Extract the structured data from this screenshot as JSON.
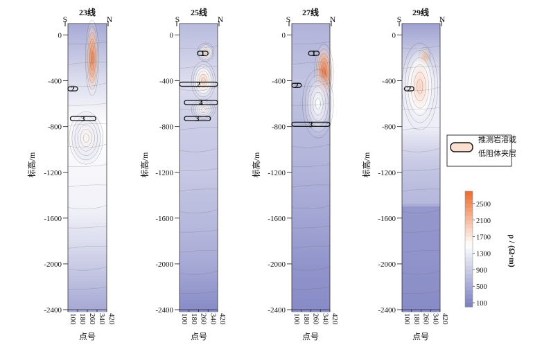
{
  "chart_data": [
    {
      "type": "heatmap",
      "title": "23线",
      "dir_left": "S",
      "dir_right": "N",
      "ylabel": "标高/m",
      "xlabel": "点号",
      "y_ticks": [
        0,
        -400,
        -800,
        -1200,
        -1600,
        -2000,
        -2400
      ],
      "x_ticks": [
        100,
        180,
        260,
        340,
        420
      ],
      "ylim": [
        -2400,
        100
      ],
      "xlim": [
        100,
        420
      ],
      "anomalies": [
        {
          "x": 300,
          "y": -200,
          "rx": 55,
          "ry": 330,
          "value": 2600
        },
        {
          "x": 250,
          "y": -900,
          "rx": 140,
          "ry": 230,
          "value": 1600
        }
      ],
      "base_profile": [
        [
          100,
          500
        ],
        [
          -400,
          1100
        ],
        [
          -800,
          1500
        ],
        [
          -1200,
          1400
        ],
        [
          -1500,
          1350
        ],
        [
          -1800,
          1100
        ],
        [
          -2000,
          900
        ],
        [
          -2400,
          500
        ]
      ],
      "layers": [
        {
          "label": "2",
          "x1": 100,
          "x2": 180,
          "y": -470
        },
        {
          "label": "3",
          "x1": 120,
          "x2": 330,
          "y": -730
        }
      ]
    },
    {
      "type": "heatmap",
      "title": "25线",
      "dir_left": "S",
      "dir_right": "N",
      "ylabel": "标高/m",
      "xlabel": "点号",
      "y_ticks": [
        0,
        -400,
        -800,
        -1200,
        -1600,
        -2000,
        -2400
      ],
      "x_ticks": [
        100,
        180,
        260,
        340,
        420
      ],
      "ylim": [
        -2400,
        100
      ],
      "xlim": [
        100,
        420
      ],
      "anomalies": [
        {
          "x": 300,
          "y": -400,
          "rx": 100,
          "ry": 170,
          "value": 1900
        },
        {
          "x": 320,
          "y": -150,
          "rx": 70,
          "ry": 80,
          "value": 1800
        },
        {
          "x": 300,
          "y": -650,
          "rx": 100,
          "ry": 90,
          "value": 1600
        }
      ],
      "base_profile": [
        [
          100,
          700
        ],
        [
          -400,
          1100
        ],
        [
          -800,
          900
        ],
        [
          -1200,
          850
        ],
        [
          -1600,
          700
        ],
        [
          -2000,
          500
        ],
        [
          -2400,
          150
        ]
      ],
      "layers": [
        {
          "label": "1",
          "x1": 250,
          "x2": 340,
          "y": -160
        },
        {
          "label": "2",
          "x1": 100,
          "x2": 420,
          "y": -430
        },
        {
          "label": "4",
          "x1": 140,
          "x2": 420,
          "y": -590
        },
        {
          "label": "3",
          "x1": 140,
          "x2": 360,
          "y": -730
        }
      ]
    },
    {
      "type": "heatmap",
      "title": "27线",
      "dir_left": "S",
      "dir_right": "N",
      "ylabel": "标高/m",
      "xlabel": "点号",
      "y_ticks": [
        0,
        -400,
        -800,
        -1200,
        -1600,
        -2000,
        -2400
      ],
      "x_ticks": [
        100,
        180,
        260,
        340,
        420
      ],
      "ylim": [
        -2400,
        100
      ],
      "xlim": [
        100,
        420
      ],
      "anomalies": [
        {
          "x": 370,
          "y": -330,
          "rx": 80,
          "ry": 250,
          "value": 2700
        },
        {
          "x": 320,
          "y": -600,
          "rx": 130,
          "ry": 300,
          "value": 1500
        }
      ],
      "base_profile": [
        [
          100,
          600
        ],
        [
          -400,
          800
        ],
        [
          -800,
          700
        ],
        [
          -1200,
          600
        ],
        [
          -1600,
          450
        ],
        [
          -2000,
          250
        ],
        [
          -2400,
          150
        ]
      ],
      "layers": [
        {
          "label": "1",
          "x1": 240,
          "x2": 330,
          "y": -160
        },
        {
          "label": "2",
          "x1": 100,
          "x2": 180,
          "y": -440
        },
        {
          "label": "3",
          "x1": 100,
          "x2": 420,
          "y": -780
        }
      ]
    },
    {
      "type": "heatmap",
      "title": "29线",
      "dir_left": "S",
      "dir_right": "N",
      "ylabel": "标高/m",
      "xlabel": "点号",
      "y_ticks": [
        0,
        -400,
        -800,
        -1200,
        -1600,
        -2000,
        -2400
      ],
      "x_ticks": [
        100,
        180,
        260,
        340,
        420
      ],
      "ylim": [
        -2400,
        100
      ],
      "xlim": [
        100,
        420
      ],
      "anomalies": [
        {
          "x": 290,
          "y": -200,
          "rx": 50,
          "ry": 90,
          "value": 2500
        },
        {
          "x": 250,
          "y": -450,
          "rx": 150,
          "ry": 380,
          "value": 1900
        }
      ],
      "base_profile": [
        [
          100,
          400
        ],
        [
          -400,
          1300
        ],
        [
          -800,
          1300
        ],
        [
          -1000,
          1000
        ],
        [
          -1200,
          800
        ],
        [
          -1480,
          650
        ],
        [
          -1500,
          280
        ],
        [
          -1900,
          250
        ],
        [
          -2400,
          150
        ]
      ],
      "layers": [
        {
          "label": "2",
          "x1": 120,
          "x2": 200,
          "y": -470
        }
      ]
    }
  ],
  "legend": {
    "text_line1": "推测岩溶或",
    "text_line2": "低阻体夹层"
  },
  "colorbar": {
    "ticks": [
      100,
      500,
      900,
      1300,
      1700,
      2100,
      2500
    ],
    "title": "ρ / (Ω·m)",
    "min": 0,
    "max": 2800,
    "colors": {
      "low": "#7b7fc0",
      "mid": "#ffffff",
      "high": "#ec6a2c"
    }
  }
}
